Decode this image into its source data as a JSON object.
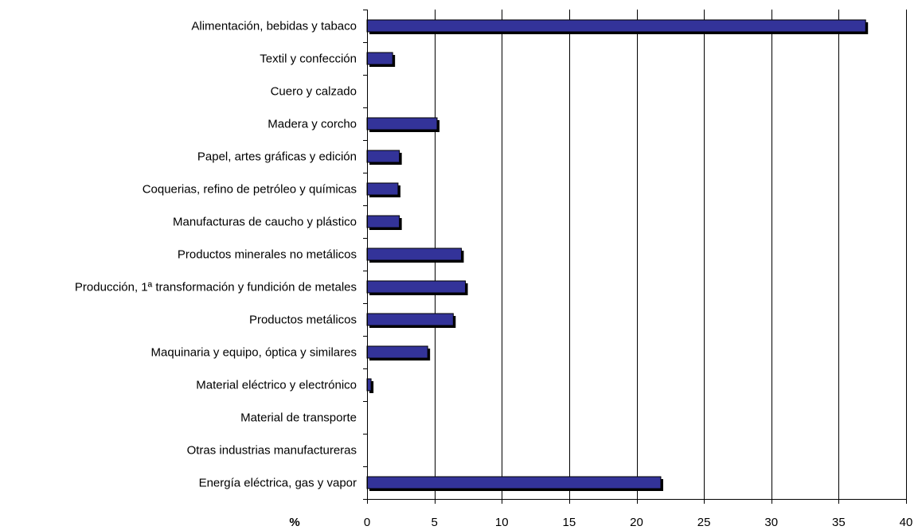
{
  "chart_data": {
    "type": "bar",
    "orientation": "horizontal",
    "categories": [
      "Alimentación, bebidas y tabaco",
      "Textil y confección",
      "Cuero y calzado",
      "Madera y corcho",
      "Papel,  artes gráficas y edición",
      "Coquerias, refino de petróleo y químicas",
      "Manufacturas de caucho y plástico",
      "Productos minerales no metálicos",
      "Producción, 1ª transformación y fundición de metales",
      "Productos  metálicos",
      "Maquinaria y equipo, óptica y similares",
      "Material eléctrico y electrónico",
      "Material de transporte",
      "Otras industrias manufactureras",
      "Energía eléctrica, gas y vapor"
    ],
    "values": [
      37,
      1.9,
      0,
      5.2,
      2.4,
      2.3,
      2.4,
      7.0,
      7.3,
      6.4,
      4.5,
      0.3,
      0,
      0,
      21.8
    ],
    "title": "",
    "xlabel": "%",
    "ylabel": "",
    "xlim": [
      0,
      40
    ],
    "xticks": [
      "0",
      "5",
      "10",
      "15",
      "20",
      "25",
      "30",
      "35",
      "40"
    ],
    "grid": "vertical",
    "legend": "none",
    "colors": {
      "bar": "#333399",
      "bar_shadow": "#000000",
      "grid": "#000000"
    }
  }
}
